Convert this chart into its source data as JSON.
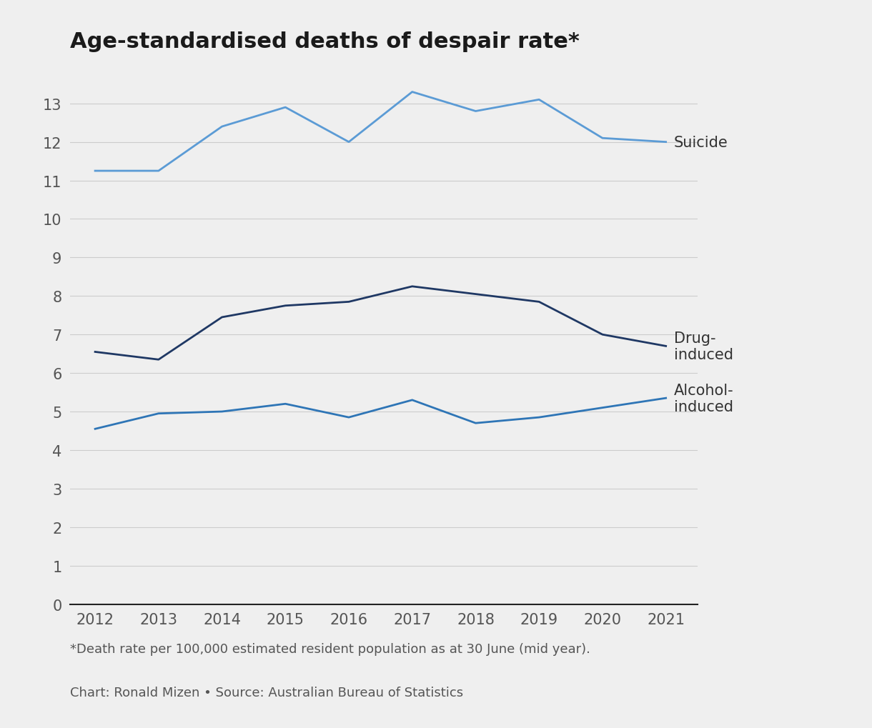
{
  "title": "Age-standardised deaths of despair rate*",
  "footnote": "*Death rate per 100,000 estimated resident population as at 30 June (mid year).",
  "source": "Chart: Ronald Mizen • Source: Australian Bureau of Statistics",
  "years": [
    2012,
    2013,
    2014,
    2015,
    2016,
    2017,
    2018,
    2019,
    2020,
    2021
  ],
  "suicide": [
    11.25,
    11.25,
    12.4,
    12.9,
    12.0,
    13.3,
    12.8,
    13.1,
    12.1,
    12.0
  ],
  "drug_induced": [
    6.55,
    6.35,
    7.45,
    7.75,
    7.85,
    8.25,
    8.05,
    7.85,
    7.0,
    6.7
  ],
  "alcohol_induced": [
    4.55,
    4.95,
    5.0,
    5.2,
    4.85,
    5.3,
    4.7,
    4.85,
    5.1,
    5.35
  ],
  "suicide_color": "#5b9bd5",
  "drug_induced_color": "#1f3864",
  "alcohol_induced_color": "#2e75b6",
  "background_color": "#efefef",
  "grid_color": "#cccccc",
  "text_color": "#555555",
  "label_color": "#333333",
  "title_color": "#1a1a1a",
  "ylim": [
    0,
    14
  ],
  "yticks": [
    0,
    1,
    2,
    3,
    4,
    5,
    6,
    7,
    8,
    9,
    10,
    11,
    12,
    13
  ],
  "tick_fontsize": 15,
  "title_fontsize": 22,
  "label_fontsize": 15,
  "footnote_fontsize": 13,
  "line_width": 2.0
}
